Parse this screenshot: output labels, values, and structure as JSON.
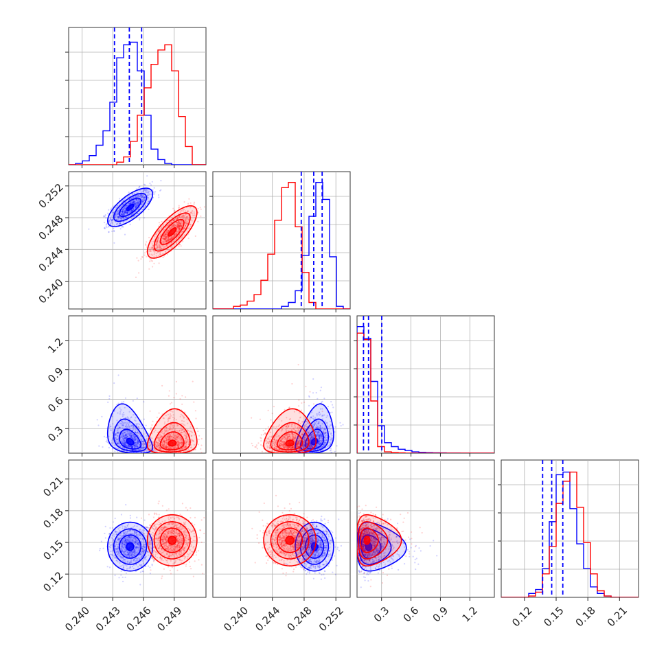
{
  "chart_data": {
    "type": "corner",
    "params": [
      {
        "ticks": [
          0.24,
          0.243,
          0.246,
          0.249
        ],
        "labels": [
          "0.240",
          "0.243",
          "0.246",
          "0.249"
        ],
        "range": [
          0.2387,
          0.2521
        ]
      },
      {
        "ticks": [
          0.24,
          0.244,
          0.248,
          0.252
        ],
        "labels": [
          "0.240",
          "0.244",
          "0.248",
          "0.252"
        ],
        "range": [
          0.2365,
          0.2538
        ]
      },
      {
        "ticks": [
          0.3,
          0.6,
          0.9,
          1.2
        ],
        "labels": [
          "0.3",
          "0.6",
          "0.9",
          "1.2"
        ],
        "range": [
          0.05,
          1.45
        ]
      },
      {
        "ticks": [
          0.12,
          0.15,
          0.18,
          0.21
        ],
        "labels": [
          "0.12",
          "0.15",
          "0.18",
          "0.21"
        ],
        "range": [
          0.098,
          0.228
        ]
      }
    ],
    "series": [
      {
        "color": "#0000ff",
        "mean": [
          0.2447,
          0.2493,
          0.165,
          0.146
        ],
        "sd": [
          0.001,
          0.0011,
          0.085,
          0.0105
        ],
        "corr": [
          [
            1,
            0.7,
            -0.35,
            0.0
          ],
          [
            0.7,
            1,
            0.3,
            0.0
          ],
          [
            -0.35,
            0.3,
            1,
            -0.05
          ],
          [
            0.0,
            0.0,
            -0.05,
            1
          ]
        ],
        "quantiles": [
          [
            0.24317,
            0.24462,
            0.24582
          ],
          [
            0.24764,
            0.24921,
            0.25027
          ],
          [
            0.116,
            0.167,
            0.302
          ],
          [
            0.1372,
            0.1458,
            0.1563
          ]
        ]
      },
      {
        "color": "#ff0000",
        "mean": [
          0.2488,
          0.2462,
          0.15,
          0.152
        ],
        "sd": [
          0.0011,
          0.0015,
          0.045,
          0.011
        ],
        "corr": [
          [
            1,
            0.75,
            0.1,
            0.0
          ],
          [
            0.75,
            1,
            0.1,
            0.0
          ],
          [
            0.1,
            0.1,
            1,
            0.0
          ],
          [
            0.0,
            0.0,
            0.0,
            1
          ]
        ]
      }
    ],
    "histograms": [
      {
        "edges_range": [
          0.2387,
          0.2521
        ],
        "bins": 20,
        "blue": [
          0,
          1,
          3,
          7,
          15,
          26,
          48,
          82,
          92,
          94,
          72,
          38,
          12,
          4,
          1,
          0,
          0,
          0,
          0,
          0
        ],
        "red": [
          0,
          0,
          0,
          0,
          0,
          0,
          0,
          2,
          6,
          18,
          38,
          59,
          77,
          88,
          92,
          72,
          37,
          14,
          0,
          0
        ]
      },
      {
        "edges_range": [
          0.2365,
          0.2538
        ],
        "bins": 20,
        "blue": [
          0,
          0,
          0,
          0,
          0,
          0,
          0,
          0,
          0,
          0,
          2,
          5,
          14,
          41,
          71,
          97,
          84,
          40,
          2,
          0
        ],
        "red": [
          0,
          0,
          0,
          2,
          3,
          6,
          11,
          22,
          42,
          68,
          93,
          97,
          63,
          28,
          5,
          0,
          0,
          0,
          0,
          0
        ]
      },
      {
        "edges_range": [
          0.05,
          1.45
        ],
        "bins": 20,
        "blue": [
          97,
          88,
          55,
          21,
          8,
          5,
          3,
          2,
          1,
          0.6,
          0.4,
          0.3,
          0.2,
          0.1,
          0.1,
          0,
          0,
          0,
          0,
          0
        ],
        "red": [
          92,
          87,
          40,
          5,
          1,
          0.4,
          0.2,
          0,
          0,
          0,
          0,
          0,
          0,
          0,
          0,
          0,
          0,
          0,
          0,
          0
        ]
      },
      {
        "edges_range": [
          0.098,
          0.228
        ],
        "bins": 20,
        "blue": [
          0,
          0,
          0,
          0,
          3,
          6,
          22,
          58,
          94,
          96,
          68,
          41,
          22,
          8,
          3,
          1,
          0,
          0,
          0,
          0
        ],
        "red": [
          0,
          0,
          0,
          0,
          1,
          4,
          18,
          39,
          72,
          89,
          96,
          69,
          42,
          18,
          5,
          1,
          0,
          0,
          0,
          0
        ]
      }
    ]
  }
}
